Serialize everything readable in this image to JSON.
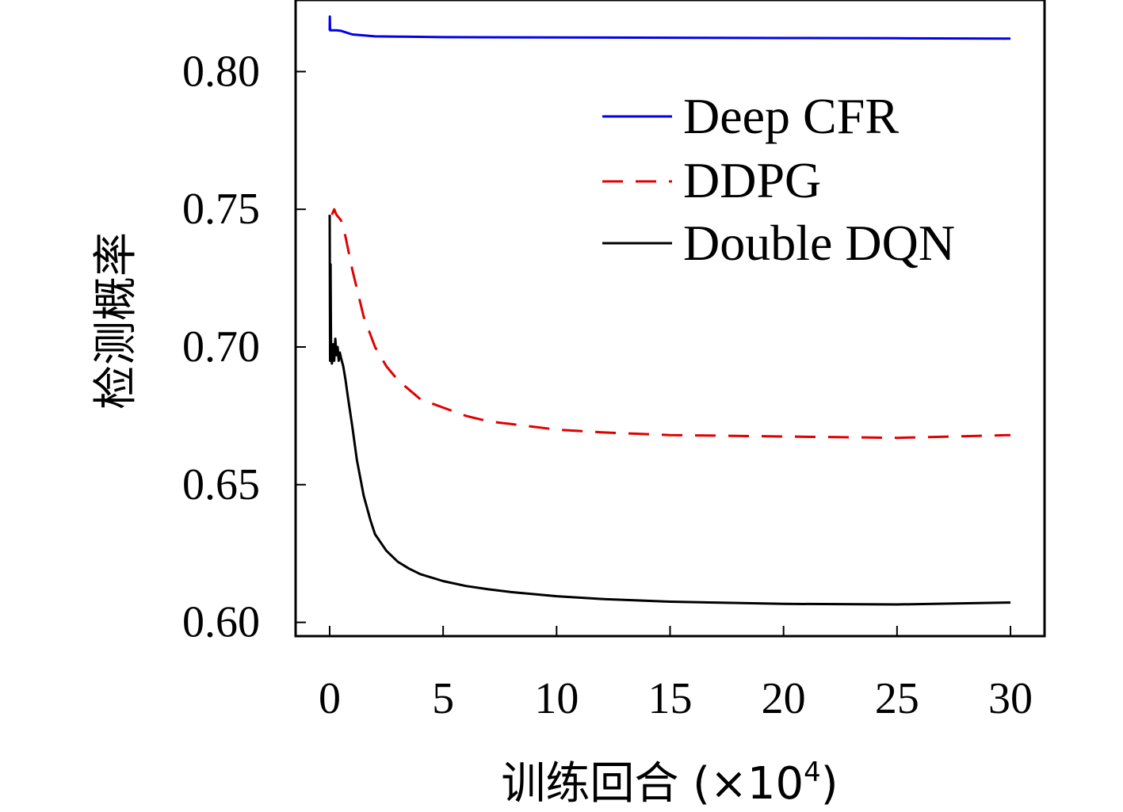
{
  "chart_data": {
    "type": "line",
    "title": "",
    "xlabel": "训练回合 (×10⁴)",
    "xlabel_main": "训练回合 (×10",
    "xlabel_exp": "4",
    "xlabel_close": ")",
    "ylabel": "检测概率",
    "xlim": [
      -1.5,
      31.5
    ],
    "ylim": [
      0.595,
      0.826
    ],
    "x_ticks": [
      0,
      5,
      10,
      15,
      20,
      25,
      30
    ],
    "x_tick_labels": [
      "0",
      "5",
      "10",
      "15",
      "20",
      "25",
      "30"
    ],
    "y_ticks": [
      0.6,
      0.65,
      0.7,
      0.75,
      0.8
    ],
    "y_tick_labels": [
      "0.60",
      "0.65",
      "0.70",
      "0.75",
      "0.80"
    ],
    "grid": false,
    "legend_position": "top-right",
    "series": [
      {
        "name": "Deep CFR",
        "color": "#0000ee",
        "dash": "solid",
        "x": [
          0,
          0.01,
          0.02,
          0.1,
          0.3,
          0.5,
          1,
          2,
          3,
          5,
          10,
          15,
          20,
          25,
          30
        ],
        "y": [
          0.815,
          0.82,
          0.815,
          0.815,
          0.815,
          0.8148,
          0.8135,
          0.8128,
          0.8127,
          0.8125,
          0.8124,
          0.8123,
          0.8122,
          0.8121,
          0.812
        ]
      },
      {
        "name": "DDPG",
        "color": "#e00000",
        "dash": "dashed",
        "x": [
          0.1,
          0.2,
          0.3,
          0.5,
          0.7,
          1,
          1.5,
          2,
          2.5,
          3,
          4,
          5,
          6,
          7,
          8,
          10,
          12,
          15,
          20,
          25,
          30
        ],
        "y": [
          0.748,
          0.75,
          0.748,
          0.746,
          0.74,
          0.728,
          0.711,
          0.7,
          0.693,
          0.688,
          0.681,
          0.678,
          0.675,
          0.673,
          0.672,
          0.67,
          0.669,
          0.668,
          0.6675,
          0.667,
          0.668
        ]
      },
      {
        "name": "Double DQN",
        "color": "#000000",
        "dash": "solid",
        "x": [
          0,
          0.02,
          0.04,
          0.06,
          0.1,
          0.15,
          0.2,
          0.25,
          0.3,
          0.35,
          0.4,
          0.45,
          0.5,
          0.6,
          0.7,
          0.8,
          1,
          1.2,
          1.5,
          1.8,
          2,
          2.5,
          3,
          3.5,
          4,
          5,
          6,
          7,
          8,
          10,
          12,
          15,
          20,
          25,
          30
        ],
        "y": [
          0.748,
          0.695,
          0.73,
          0.7,
          0.694,
          0.701,
          0.695,
          0.703,
          0.697,
          0.7,
          0.695,
          0.698,
          0.696,
          0.693,
          0.688,
          0.682,
          0.671,
          0.659,
          0.646,
          0.637,
          0.632,
          0.626,
          0.622,
          0.6195,
          0.6175,
          0.615,
          0.6132,
          0.612,
          0.611,
          0.6095,
          0.6085,
          0.6075,
          0.6067,
          0.6065,
          0.6072
        ]
      }
    ]
  }
}
